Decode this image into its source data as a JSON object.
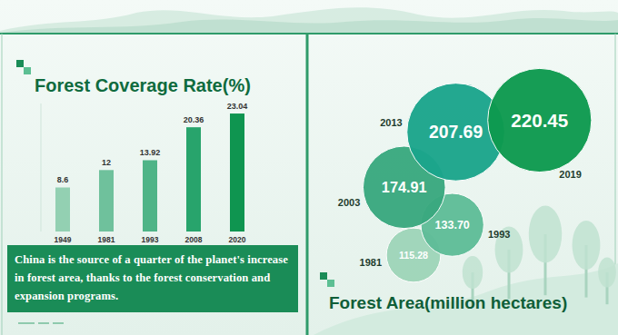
{
  "chart_data": [
    {
      "type": "bar",
      "title": "Forest Coverage Rate(%)",
      "categories": [
        "1949",
        "1981",
        "1993",
        "2008",
        "2020"
      ],
      "values": [
        8.6,
        12,
        13.92,
        20.36,
        23.04
      ],
      "colors": [
        "#93d0b2",
        "#6fc19c",
        "#4fb487",
        "#28a46c",
        "#0f9550"
      ],
      "ylim": [
        0,
        25
      ],
      "data_labels": true,
      "tick_labels": "x",
      "annotation": "China is the source of a quarter of the planet's increase in forest area,  thanks to the  forest conservation and expansion programs."
    },
    {
      "type": "bubble",
      "title": "Forest Area(million hectares)",
      "categories": [
        "1981",
        "1993",
        "2003",
        "2013",
        "2019"
      ],
      "values": [
        115.28,
        133.7,
        174.91,
        207.69,
        220.45
      ],
      "value_labels": [
        "115.28",
        "133.70",
        "174.91",
        "207.69",
        "220.45"
      ],
      "colors": [
        "#9fd5b9",
        "#5fbd98",
        "#3aa97f",
        "#1ba58c",
        "#0e9a4f"
      ],
      "data_labels": true
    }
  ]
}
